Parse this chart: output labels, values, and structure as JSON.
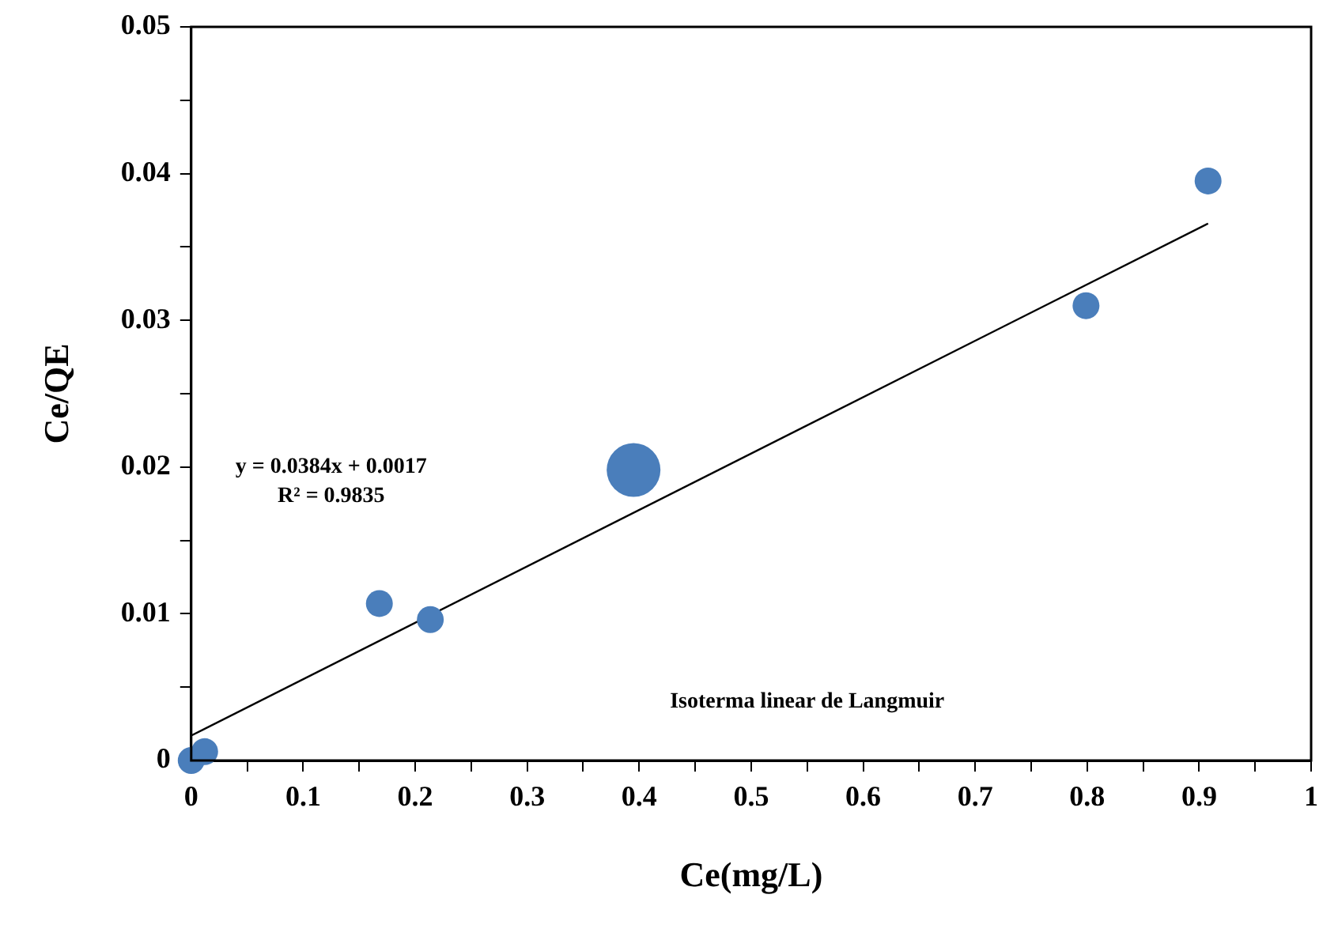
{
  "chart_data": {
    "type": "bubble",
    "xlabel": "Ce(mg/L)",
    "ylabel": "Ce/QE",
    "xlim": [
      0,
      1
    ],
    "ylim": [
      0,
      0.05
    ],
    "xticks": [
      0,
      {
        "value": 0.05,
        "label": null
      },
      0.1,
      {
        "value": 0.15,
        "label": null
      },
      0.2,
      {
        "value": 0.25,
        "label": null
      },
      0.3,
      {
        "value": 0.35,
        "label": null
      },
      0.4,
      {
        "value": 0.45,
        "label": null
      },
      0.5,
      {
        "value": 0.55,
        "label": null
      },
      0.6,
      {
        "value": 0.65,
        "label": null
      },
      0.7,
      {
        "value": 0.75,
        "label": null
      },
      0.8,
      {
        "value": 0.85,
        "label": null
      },
      0.9,
      {
        "value": 0.95,
        "label": null
      },
      1
    ],
    "yticks": [
      0,
      {
        "value": 0.005,
        "label": null
      },
      0.01,
      {
        "value": 0.015,
        "label": null
      },
      0.02,
      {
        "value": 0.025,
        "label": null
      },
      0.03,
      {
        "value": 0.035,
        "label": null
      },
      0.04,
      {
        "value": 0.045,
        "label": null
      },
      0.05
    ],
    "grid": false,
    "legend": false,
    "series": [
      {
        "type": "bubble",
        "color": "#4a7ebb",
        "x": [
          0,
          0.012,
          0.168,
          0.2135,
          0.395,
          0.799,
          0.908
        ],
        "values": [
          0,
          0.0006,
          0.0107,
          0.0096,
          0.0198,
          0.031,
          0.0395
        ],
        "sizes": [
          0.25,
          0.25,
          0.25,
          0.25,
          1,
          0.25,
          0.25
        ]
      },
      {
        "type": "line",
        "color": "#000000",
        "x": [
          0,
          0.908
        ],
        "values": [
          0.0017,
          0.0366
        ]
      }
    ],
    "annotations": [
      "y = 0.0384x + 0.0017",
      "R² = 0.9835",
      "Isoterma linear de Langmuir"
    ]
  }
}
